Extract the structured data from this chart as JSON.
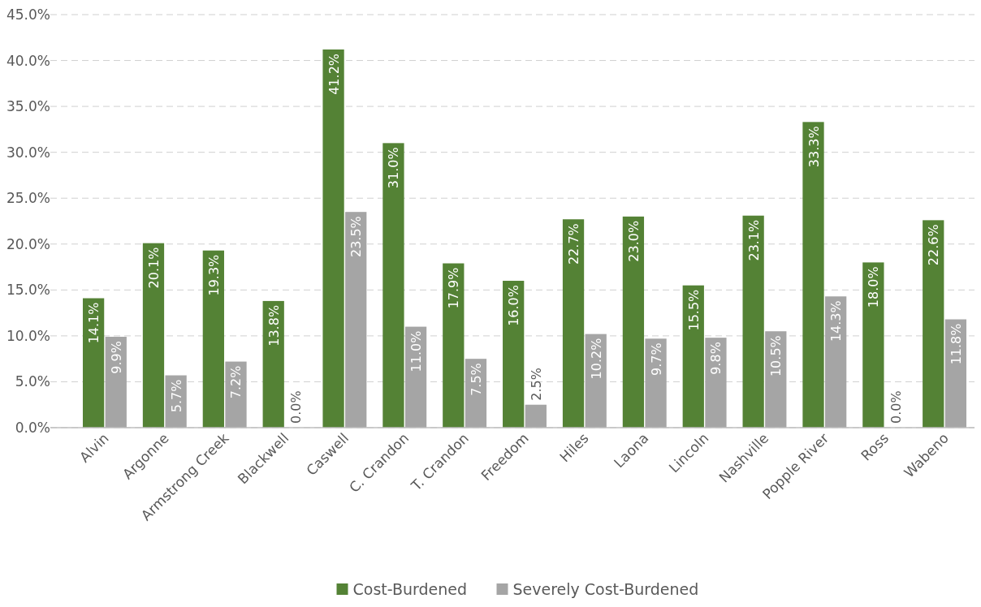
{
  "chart_data": {
    "type": "bar",
    "categories": [
      "Alvin",
      "Argonne",
      "Armstrong Creek",
      "Blackwell",
      "Caswell",
      "C. Crandon",
      "T. Crandon",
      "Freedom",
      "Hiles",
      "Laona",
      "Lincoln",
      "Nashville",
      "Popple River",
      "Ross",
      "Wabeno"
    ],
    "series": [
      {
        "name": "Cost-Burdened",
        "color": "#548235",
        "values": [
          14.1,
          20.1,
          19.3,
          13.8,
          41.2,
          31.0,
          17.9,
          16.0,
          22.7,
          23.0,
          15.5,
          23.1,
          33.3,
          18.0,
          22.6
        ],
        "value_labels": [
          "14.1%",
          "20.1%",
          "19.3%",
          "13.8%",
          "41.2%",
          "31.0%",
          "17.9%",
          "16.0%",
          "22.7%",
          "23.0%",
          "15.5%",
          "23.1%",
          "33.3%",
          "18.0%",
          "22.6%"
        ]
      },
      {
        "name": "Severely Cost-Burdened",
        "color": "#a5a5a5",
        "values": [
          9.9,
          5.7,
          7.2,
          0.0,
          23.5,
          11.0,
          7.5,
          2.5,
          10.2,
          9.7,
          9.8,
          10.5,
          14.3,
          0.0,
          11.8
        ],
        "value_labels": [
          "9.9%",
          "5.7%",
          "7.2%",
          "0.0%",
          "23.5%",
          "11.0%",
          "7.5%",
          "2.5%",
          "10.2%",
          "9.7%",
          "9.8%",
          "10.5%",
          "14.3%",
          "0.0%",
          "11.8%"
        ]
      }
    ],
    "ylim": [
      0,
      45
    ],
    "yticks": [
      {
        "value": 0,
        "label": "0.0%"
      },
      {
        "value": 5,
        "label": "5.0%"
      },
      {
        "value": 10,
        "label": "10.0%"
      },
      {
        "value": 15,
        "label": "15.0%"
      },
      {
        "value": 20,
        "label": "20.0%"
      },
      {
        "value": 25,
        "label": "25.0%"
      },
      {
        "value": 30,
        "label": "30.0%"
      },
      {
        "value": 35,
        "label": "35.0%"
      },
      {
        "value": 40,
        "label": "40.0%"
      },
      {
        "value": 45,
        "label": "45.0%"
      }
    ],
    "grid": "y",
    "legend": "bottom"
  }
}
